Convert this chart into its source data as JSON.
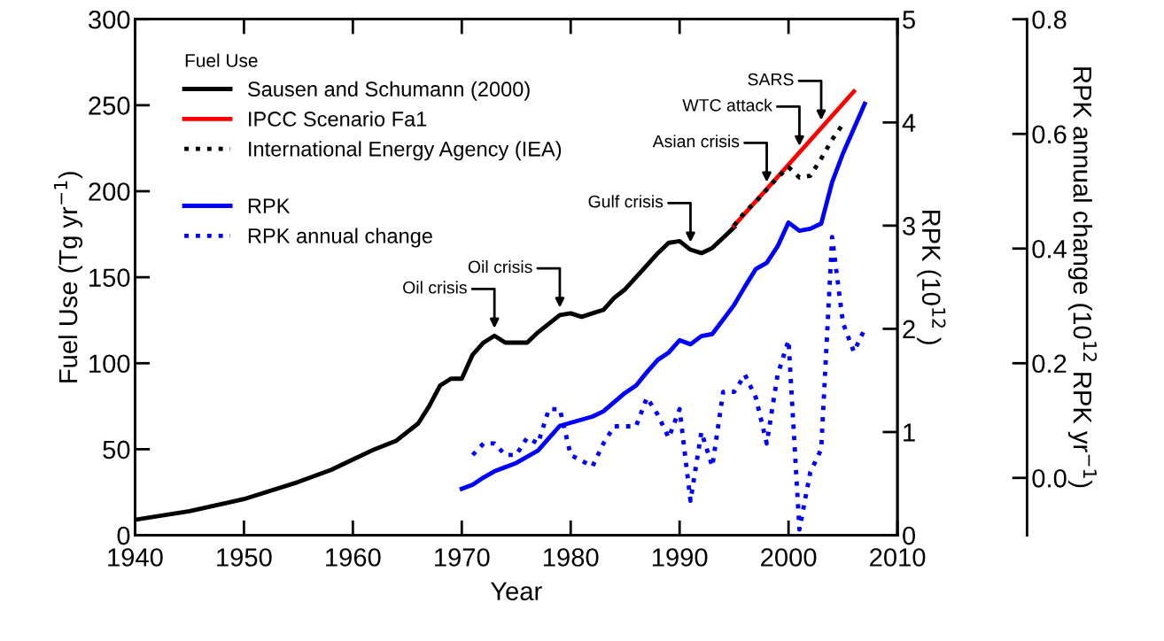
{
  "chart_data": {
    "type": "line",
    "xlabel": "Year",
    "ylabel": "Fuel Use (Tg yr$^{−1}$)",
    "y2label": "RPK (10$^{12}$ )",
    "y3label": "RPK annual change (10$^{12}$ RPK yr$^{−1}$)",
    "legend_title": "Fuel Use",
    "xlim": [
      1940,
      2010
    ],
    "xticks": [
      1940,
      1950,
      1960,
      1970,
      1980,
      1990,
      2000,
      2010
    ],
    "ylim": [
      0,
      300
    ],
    "yticks": [
      0,
      50,
      100,
      150,
      200,
      250,
      300
    ],
    "y2lim": [
      0,
      5
    ],
    "y2ticks": [
      0,
      1,
      2,
      3,
      4,
      5
    ],
    "y3lim": [
      -0.1,
      0.8
    ],
    "y3ticks": [
      {
        "value": 0,
        "label": "0.0"
      },
      {
        "value": 0.2,
        "label": "0.2"
      },
      {
        "value": 0.4,
        "label": "0.4"
      },
      {
        "value": 0.6,
        "label": "0.6"
      },
      {
        "value": 0.8,
        "label": "0.8"
      }
    ],
    "grid": false,
    "legend": "top left",
    "series": [
      {
        "name": "Sausen and Schumann (2000)",
        "color": "#000000",
        "line_style": "solid",
        "axis": "y",
        "x": [
          1940,
          1945,
          1950,
          1955,
          1958,
          1960,
          1962,
          1964,
          1966,
          1967,
          1968,
          1969,
          1970,
          1971,
          1972,
          1973,
          1974,
          1975,
          1976,
          1977,
          1978,
          1979,
          1980,
          1981,
          1982,
          1983,
          1984,
          1985,
          1986,
          1987,
          1988,
          1989,
          1990,
          1991,
          1992,
          1993,
          1994,
          1995
        ],
        "values": [
          9,
          14,
          21,
          31,
          38,
          44,
          50,
          55,
          65,
          75,
          87,
          91,
          91,
          105,
          112,
          116,
          112,
          112,
          112,
          118,
          123,
          128,
          129,
          127,
          129,
          131,
          138,
          143,
          150,
          157,
          164,
          170,
          171,
          166,
          164,
          167,
          173,
          179
        ]
      },
      {
        "name": "IPCC Scenario Fa1",
        "color": "#ff0000",
        "line_style": "solid",
        "axis": "y",
        "x": [
          1995,
          2006
        ],
        "values": [
          180,
          258
        ]
      },
      {
        "name": "International Energy Agency (IEA)",
        "color": "#000000",
        "line_style": "dotted",
        "axis": "y",
        "x": [
          1995,
          1996,
          1997,
          1998,
          1999,
          2000,
          2001,
          2002,
          2003,
          2004,
          2005
        ],
        "values": [
          180,
          188,
          194,
          201,
          208,
          214,
          208,
          209,
          219,
          230,
          239
        ]
      },
      {
        "name": "RPK",
        "color": "#0000ff",
        "line_style": "solid",
        "axis": "y2",
        "x": [
          1970,
          1971,
          1972,
          1973,
          1974,
          1975,
          1976,
          1977,
          1978,
          1979,
          1980,
          1981,
          1982,
          1983,
          1984,
          1985,
          1986,
          1987,
          1988,
          1989,
          1990,
          1991,
          1992,
          1993,
          1994,
          1995,
          1996,
          1997,
          1998,
          1999,
          2000,
          2001,
          2002,
          2003,
          2004,
          2005,
          2006,
          2007
        ],
        "values": [
          0.45,
          0.49,
          0.56,
          0.62,
          0.66,
          0.7,
          0.76,
          0.82,
          0.94,
          1.06,
          1.09,
          1.12,
          1.15,
          1.2,
          1.29,
          1.38,
          1.45,
          1.58,
          1.7,
          1.77,
          1.89,
          1.85,
          1.93,
          1.95,
          2.09,
          2.23,
          2.41,
          2.58,
          2.64,
          2.8,
          3.03,
          2.95,
          2.97,
          3.02,
          3.42,
          3.7,
          3.94,
          4.18
        ]
      },
      {
        "name": "RPK annual change",
        "color": "#0000ff",
        "line_style": "dotted",
        "axis": "y3",
        "x": [
          1971,
          1972,
          1973,
          1974,
          1975,
          1976,
          1977,
          1978,
          1979,
          1980,
          1981,
          1982,
          1983,
          1984,
          1985,
          1986,
          1987,
          1988,
          1989,
          1990,
          1991,
          1992,
          1993,
          1994,
          1995,
          1996,
          1997,
          1998,
          1999,
          2000,
          2001,
          2002,
          2003,
          2004,
          2005,
          2006,
          2007
        ],
        "values": [
          0.04,
          0.06,
          0.06,
          0.04,
          0.04,
          0.07,
          0.06,
          0.12,
          0.12,
          0.04,
          0.03,
          0.02,
          0.06,
          0.09,
          0.09,
          0.09,
          0.14,
          0.11,
          0.07,
          0.12,
          -0.04,
          0.08,
          0.02,
          0.15,
          0.15,
          0.18,
          0.14,
          0.06,
          0.18,
          0.24,
          -0.09,
          0.01,
          0.05,
          0.42,
          0.27,
          0.22,
          0.26
        ]
      }
    ],
    "annotations": [
      {
        "text": "Oil crisis",
        "x": 1973,
        "y": 116
      },
      {
        "text": "Oil crisis",
        "x": 1979,
        "y": 128
      },
      {
        "text": "Gulf crisis",
        "x": 1991,
        "y": 166
      },
      {
        "text": "Asian crisis",
        "x": 1998,
        "y": 201
      },
      {
        "text": "WTC attack",
        "x": 2001,
        "y": 222
      },
      {
        "text": "SARS",
        "x": 2003,
        "y": 237
      }
    ]
  }
}
